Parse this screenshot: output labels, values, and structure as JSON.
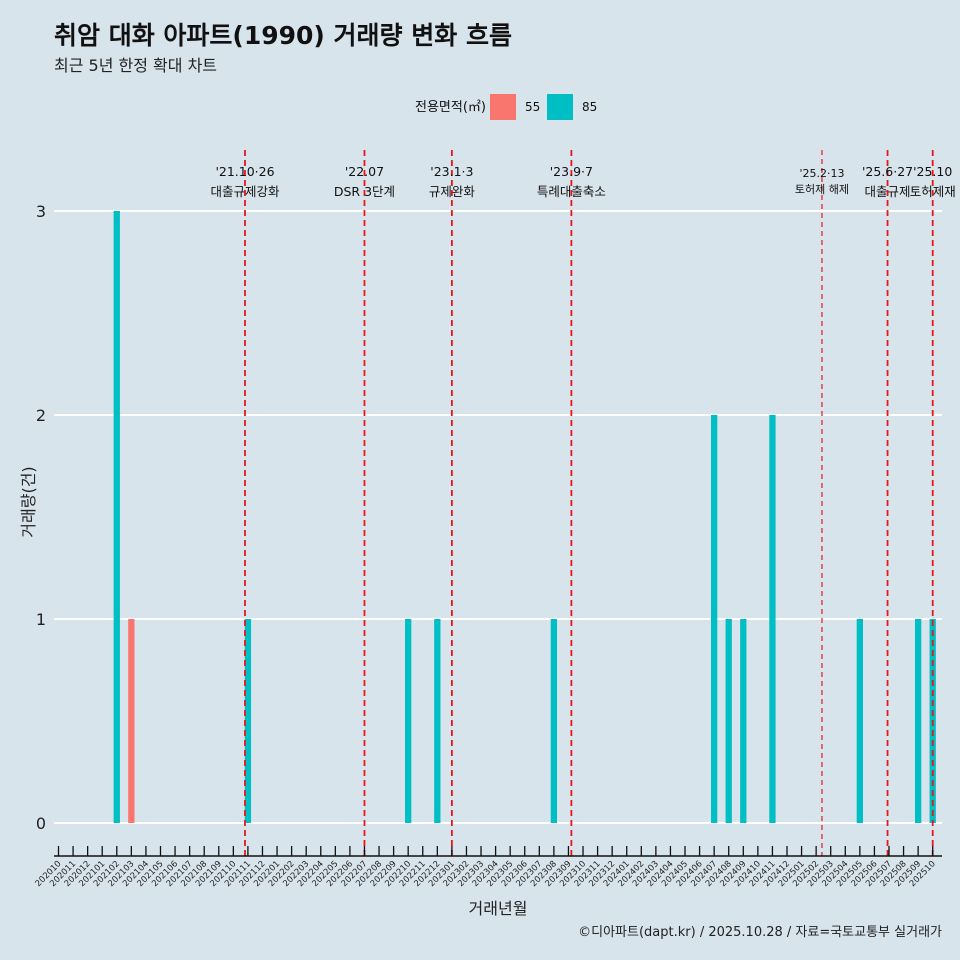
{
  "chart_data": {
    "type": "bar",
    "title": "취암 대화 아파트(1990) 거래량 변화 흐름",
    "subtitle": "최근 5년 한정 확대 차트",
    "xlabel": "거래년월",
    "ylabel": "거래량(건)",
    "ylim": [
      0,
      3
    ],
    "yticks": [
      0,
      1,
      2,
      3
    ],
    "grid": true,
    "legend": {
      "title": "전용면적(㎡)",
      "placement": "top-center"
    },
    "categories": [
      "202010",
      "202011",
      "202012",
      "202101",
      "202102",
      "202103",
      "202104",
      "202105",
      "202106",
      "202107",
      "202108",
      "202109",
      "202110",
      "202111",
      "202112",
      "202201",
      "202202",
      "202203",
      "202204",
      "202205",
      "202206",
      "202207",
      "202208",
      "202209",
      "202210",
      "202211",
      "202212",
      "202301",
      "202302",
      "202303",
      "202304",
      "202305",
      "202306",
      "202307",
      "202308",
      "202309",
      "202310",
      "202311",
      "202312",
      "202401",
      "202402",
      "202403",
      "202404",
      "202405",
      "202406",
      "202407",
      "202408",
      "202409",
      "202410",
      "202411",
      "202412",
      "202501",
      "202502",
      "202503",
      "202504",
      "202505",
      "202506",
      "202507",
      "202508",
      "202509",
      "202510"
    ],
    "series": [
      {
        "name": "55",
        "color": "#f8766d",
        "points": [
          {
            "x": "202103",
            "y": 1
          }
        ]
      },
      {
        "name": "85",
        "color": "#00bfc4",
        "points": [
          {
            "x": "202102",
            "y": 3
          },
          {
            "x": "202111",
            "y": 1
          },
          {
            "x": "202210",
            "y": 1
          },
          {
            "x": "202212",
            "y": 1
          },
          {
            "x": "202308",
            "y": 1
          },
          {
            "x": "202407",
            "y": 2
          },
          {
            "x": "202408",
            "y": 1
          },
          {
            "x": "202409",
            "y": 1
          },
          {
            "x": "202411",
            "y": 2
          },
          {
            "x": "202505",
            "y": 1
          },
          {
            "x": "202509",
            "y": 1
          },
          {
            "x": "202510",
            "y": 1
          }
        ]
      }
    ],
    "events": [
      {
        "date": "'21.10·26",
        "label": "대출규제강화",
        "x": "202110.8",
        "style": "bold-dashed"
      },
      {
        "date": "'22.07",
        "label": "DSR 3단계",
        "x": "202207",
        "style": "bold-dashed"
      },
      {
        "date": "'23.1·3",
        "label": "규제완화",
        "x": "202301",
        "style": "bold-dashed"
      },
      {
        "date": "'23.9·7",
        "label": "특례대출축소",
        "x": "202309.2",
        "style": "bold-dashed"
      },
      {
        "date": "'25.2·13",
        "label": "토허제 해제",
        "x": "202502.4",
        "style": "thin-dashed"
      },
      {
        "date": "'25.6·27",
        "label": "대출규제",
        "x": "202506.9",
        "style": "bold-dashed"
      },
      {
        "date": "'25.10",
        "label": "토허제재",
        "x": "202510",
        "style": "bold-dashed"
      }
    ],
    "event_color": "#e8161b"
  },
  "caption": "©디아파트(dapt.kr) / 2025.10.28 / 자료=국토교통부 실거래가"
}
